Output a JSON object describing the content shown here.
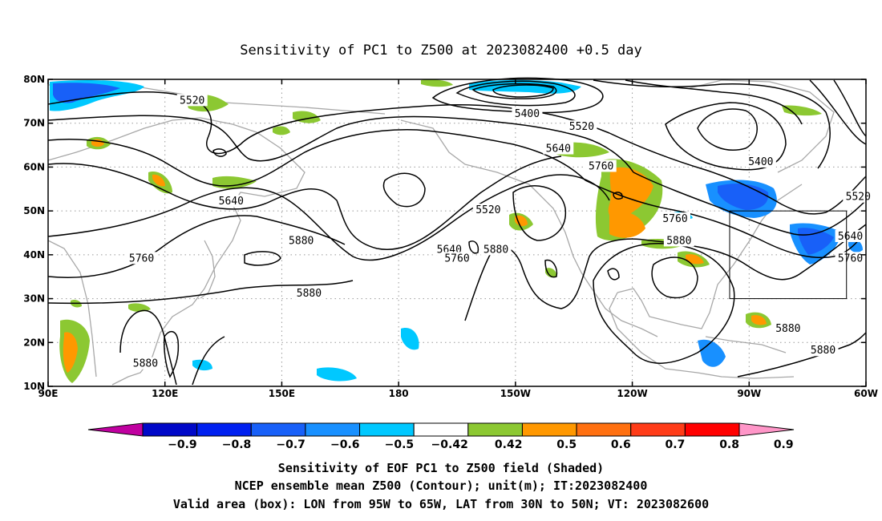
{
  "title": "Sensitivity of PC1 to Z500 at 2023082400 +0.5 day",
  "map": {
    "lon_range": [
      90,
      300
    ],
    "lat_range": [
      10,
      80
    ],
    "lat_ticks": [
      {
        "lat": 80,
        "label": "80N"
      },
      {
        "lat": 70,
        "label": "70N"
      },
      {
        "lat": 60,
        "label": "60N"
      },
      {
        "lat": 50,
        "label": "50N"
      },
      {
        "lat": 40,
        "label": "40N"
      },
      {
        "lat": 30,
        "label": "30N"
      },
      {
        "lat": 20,
        "label": "20N"
      },
      {
        "lat": 10,
        "label": "10N"
      }
    ],
    "lon_ticks": [
      {
        "lon": 90,
        "label": "90E"
      },
      {
        "lon": 120,
        "label": "120E"
      },
      {
        "lon": 150,
        "label": "150E"
      },
      {
        "lon": 180,
        "label": "180"
      },
      {
        "lon": 210,
        "label": "150W"
      },
      {
        "lon": 240,
        "label": "120W"
      },
      {
        "lon": 270,
        "label": "90W"
      },
      {
        "lon": 300,
        "label": "60W"
      }
    ],
    "grid": "dotted",
    "valid_box": {
      "lon_min": 265,
      "lon_max": 295,
      "lat_min": 30,
      "lat_max": 50
    }
  },
  "contour_labels": [
    {
      "text": "5520",
      "lon": 127,
      "lat": 75
    },
    {
      "text": "5400",
      "lon": 213,
      "lat": 72
    },
    {
      "text": "5520",
      "lon": 227,
      "lat": 69
    },
    {
      "text": "5640",
      "lon": 221,
      "lat": 64
    },
    {
      "text": "5760",
      "lon": 232,
      "lat": 60
    },
    {
      "text": "5400",
      "lon": 273,
      "lat": 61
    },
    {
      "text": "5520",
      "lon": 298,
      "lat": 53
    },
    {
      "text": "5640",
      "lon": 137,
      "lat": 52
    },
    {
      "text": "5520",
      "lon": 203,
      "lat": 50
    },
    {
      "text": "5760",
      "lon": 251,
      "lat": 48
    },
    {
      "text": "5880",
      "lon": 155,
      "lat": 43
    },
    {
      "text": "5640",
      "lon": 193,
      "lat": 41
    },
    {
      "text": "5760",
      "lon": 114,
      "lat": 39
    },
    {
      "text": "5760",
      "lon": 195,
      "lat": 39
    },
    {
      "text": "5880",
      "lon": 205,
      "lat": 41
    },
    {
      "text": "5880",
      "lon": 252,
      "lat": 43
    },
    {
      "text": "5640",
      "lon": 296,
      "lat": 44
    },
    {
      "text": "5760",
      "lon": 296,
      "lat": 39
    },
    {
      "text": "5880",
      "lon": 157,
      "lat": 31
    },
    {
      "text": "5880",
      "lon": 280,
      "lat": 23
    },
    {
      "text": "5880",
      "lon": 289,
      "lat": 18
    },
    {
      "text": "5880",
      "lon": 115,
      "lat": 15
    }
  ],
  "colorbar": {
    "colors": [
      "#c000a0",
      "#0008c8",
      "#0020f0",
      "#1860f8",
      "#1890ff",
      "#00c8ff",
      "#ffffff",
      "#8cc832",
      "#ff9800",
      "#ff7010",
      "#ff3c18",
      "#ff0000",
      "#ff96c8"
    ],
    "labels": [
      "−0.9",
      "−0.8",
      "−0.7",
      "−0.6",
      "−0.5",
      "−0.42",
      "0.42",
      "0.5",
      "0.6",
      "0.7",
      "0.8",
      "0.9"
    ]
  },
  "caption": {
    "line1": "Sensitivity of EOF PC1 to Z500 field (Shaded)",
    "line2": "NCEP ensemble mean Z500 (Contour); unit(m); IT:2023082400",
    "line3": "Valid area (box): LON from 95W to 65W, LAT from 30N to 50N; VT: 2023082600"
  }
}
